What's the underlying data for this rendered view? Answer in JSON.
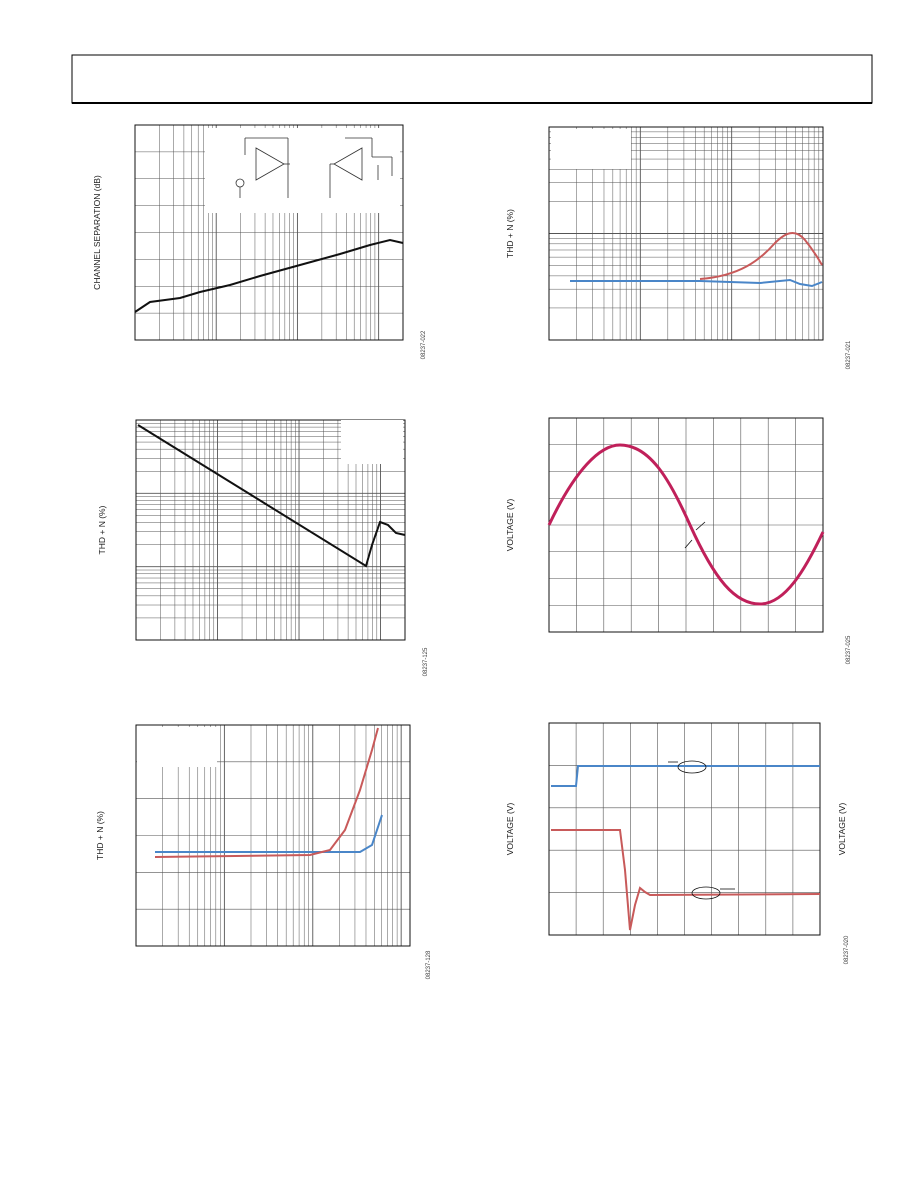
{
  "panels": [
    {
      "y_label": "CHANNEL SEPARATION (dB)",
      "code": "08237-022"
    },
    {
      "y_label": "THD + N (%)",
      "code": "08237-021"
    },
    {
      "y_label": "THD + N (%)",
      "code": "08237-125"
    },
    {
      "y_label": "VOLTAGE (V)",
      "code": "08237-025"
    },
    {
      "y_label": "THD + N (%)",
      "code": "08237-128"
    },
    {
      "y_label": "VOLTAGE (V)",
      "y2_label": "VOLTAGE (V)",
      "code": "08237-020"
    }
  ]
}
